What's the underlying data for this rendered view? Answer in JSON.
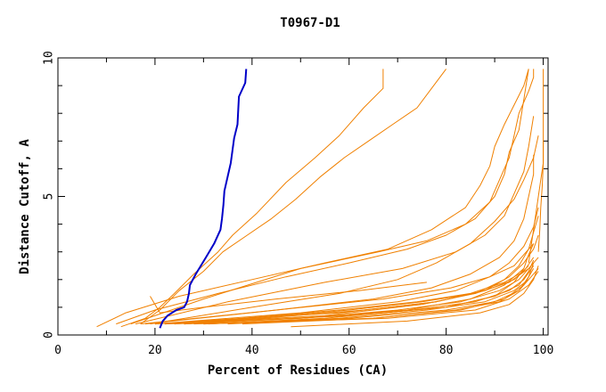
{
  "chart_data": {
    "type": "line",
    "title": "T0967-D1",
    "xlabel": "Percent of Residues (CA)",
    "ylabel": "Distance Cutoff, A",
    "xlim": [
      0,
      101
    ],
    "ylim": [
      0,
      10
    ],
    "xticks": [
      0,
      20,
      40,
      60,
      80,
      100
    ],
    "yticks": [
      0,
      5,
      10
    ],
    "grid": false,
    "colors": {
      "highlight": "#0000c8",
      "others": "#f08000",
      "axes": "#000000"
    },
    "series": [
      {
        "highlight": true,
        "x": [
          21,
          21.6,
          22.6,
          24.4,
          26,
          26.6,
          27,
          27.2,
          28.4,
          30.5,
          32.2,
          33.5,
          33.8,
          34.1,
          34.3,
          35.6,
          36.3,
          37,
          37.3,
          38.6,
          38.8
        ],
        "y": [
          0.25,
          0.5,
          0.7,
          0.9,
          1,
          1.2,
          1.5,
          1.8,
          2.2,
          2.8,
          3.3,
          3.8,
          4.2,
          4.7,
          5.2,
          6.2,
          7.1,
          7.6,
          8.6,
          9.1,
          9.6
        ]
      },
      {
        "x": [
          13,
          18,
          21,
          24,
          28,
          33,
          36,
          41,
          47,
          53,
          58,
          63,
          67,
          67
        ],
        "y": [
          0.3,
          0.6,
          1,
          1.5,
          2.2,
          3,
          3.6,
          4.4,
          5.5,
          6.4,
          7.2,
          8.2,
          8.9,
          9.6
        ]
      },
      {
        "x": [
          17,
          21,
          25,
          30,
          34,
          39,
          44,
          49,
          54,
          59,
          64,
          69,
          74,
          77,
          80
        ],
        "y": [
          0.4,
          0.9,
          1.6,
          2.3,
          3,
          3.6,
          4.2,
          4.9,
          5.7,
          6.4,
          7,
          7.6,
          8.2,
          8.9,
          9.6
        ]
      },
      {
        "x": [
          8,
          14,
          25,
          40,
          55,
          68,
          77,
          84,
          87,
          89,
          90,
          92,
          94,
          96,
          97
        ],
        "y": [
          0.3,
          0.8,
          1.4,
          2,
          2.6,
          3.1,
          3.8,
          4.6,
          5.4,
          6.1,
          6.8,
          7.6,
          8.3,
          9,
          9.6
        ]
      },
      {
        "x": [
          12,
          20,
          33,
          47,
          60,
          72,
          80,
          86,
          90,
          92,
          93,
          95,
          96,
          97
        ],
        "y": [
          0.4,
          0.9,
          1.5,
          2.1,
          2.6,
          3.1,
          3.6,
          4.2,
          5,
          5.8,
          6.6,
          7.4,
          8.5,
          9.6
        ]
      },
      {
        "x": [
          15,
          30,
          50,
          66,
          76,
          84,
          89,
          91,
          93,
          94,
          95,
          97,
          98,
          98
        ],
        "y": [
          0.4,
          1.3,
          2.4,
          3,
          3.4,
          4,
          4.8,
          5.6,
          6.4,
          7.2,
          8,
          8.8,
          9.3,
          9.6
        ]
      },
      {
        "x": [
          16,
          35,
          55,
          71,
          82,
          88,
          92,
          94,
          96,
          97,
          98
        ],
        "y": [
          0.4,
          1.2,
          1.9,
          2.4,
          3,
          3.6,
          4.3,
          5.1,
          5.9,
          6.8,
          7.9
        ]
      },
      {
        "x": [
          19,
          40,
          58,
          70,
          78,
          85,
          90,
          94,
          96,
          98,
          99
        ],
        "y": [
          0.4,
          1,
          1.5,
          2,
          2.6,
          3.3,
          4.1,
          4.9,
          5.6,
          6.4,
          7.2
        ]
      },
      {
        "x": [
          18,
          45,
          65,
          77,
          85,
          91,
          94,
          96,
          97,
          98,
          98
        ],
        "y": [
          0.4,
          0.9,
          1.3,
          1.7,
          2.2,
          2.8,
          3.4,
          4.2,
          5,
          5.8,
          6.5
        ]
      },
      {
        "x": [
          20,
          50,
          70,
          82,
          89,
          93,
          96,
          98,
          99
        ],
        "y": [
          0.4,
          0.8,
          1.2,
          1.6,
          2.1,
          2.6,
          3.2,
          3.9,
          4.6
        ]
      },
      {
        "x": [
          22,
          55,
          75,
          86,
          92,
          95,
          97,
          98,
          99
        ],
        "y": [
          0.4,
          0.7,
          1.1,
          1.5,
          2,
          2.5,
          3.1,
          3.7,
          4.3
        ]
      },
      {
        "x": [
          24,
          60,
          80,
          90,
          94,
          96,
          97,
          98
        ],
        "y": [
          0.4,
          0.7,
          1,
          1.4,
          1.9,
          2.4,
          2.9,
          3.3
        ]
      },
      {
        "x": [
          20,
          58,
          78,
          88,
          93,
          96,
          98,
          99
        ],
        "y": [
          0.4,
          0.8,
          1.2,
          1.6,
          2.1,
          2.6,
          3.1,
          3.6
        ]
      },
      {
        "x": [
          17,
          45,
          67,
          81,
          89,
          94,
          96,
          98
        ],
        "y": [
          0.4,
          0.9,
          1.3,
          1.7,
          2.1,
          2.5,
          2.9,
          3.3
        ]
      },
      {
        "x": [
          26,
          60,
          80,
          90,
          95,
          97,
          98
        ],
        "y": [
          0.4,
          0.7,
          1,
          1.4,
          1.8,
          2.3,
          2.7
        ]
      },
      {
        "x": [
          28,
          65,
          83,
          92,
          96,
          98
        ],
        "y": [
          0.4,
          0.6,
          0.9,
          1.3,
          1.8,
          2.4
        ]
      },
      {
        "x": [
          30,
          68,
          86,
          93,
          97,
          99
        ],
        "y": [
          0.4,
          0.6,
          0.9,
          1.3,
          1.8,
          2.3
        ]
      },
      {
        "x": [
          48,
          72,
          87,
          93,
          96,
          98,
          99
        ],
        "y": [
          0.3,
          0.5,
          0.8,
          1.1,
          1.5,
          2,
          2.5
        ]
      },
      {
        "x": [
          22,
          50,
          72,
          85,
          92,
          96
        ],
        "y": [
          0.4,
          0.6,
          0.9,
          1.3,
          1.8,
          2.4
        ]
      },
      {
        "x": [
          30,
          60,
          80,
          90,
          95,
          97
        ],
        "y": [
          0.4,
          0.6,
          0.9,
          1.2,
          1.6,
          2
        ]
      },
      {
        "x": [
          24,
          40,
          60,
          75,
          86,
          93,
          97,
          99
        ],
        "y": [
          0.4,
          0.6,
          0.9,
          1.2,
          1.5,
          1.9,
          2.4,
          2.8
        ]
      },
      {
        "x": [
          38,
          65,
          82,
          91,
          95,
          97,
          98
        ],
        "y": [
          0.4,
          0.6,
          0.9,
          1.2,
          1.6,
          2.1,
          2.6
        ]
      },
      {
        "x": [
          26,
          50,
          70,
          83,
          91,
          95,
          97
        ],
        "y": [
          0.4,
          0.6,
          0.9,
          1.2,
          1.6,
          2,
          2.4
        ]
      },
      {
        "x": [
          20,
          38,
          58,
          74,
          85,
          92,
          96,
          98
        ],
        "y": [
          0.4,
          0.6,
          0.9,
          1.2,
          1.5,
          1.9,
          2.3,
          2.8
        ]
      },
      {
        "x": [
          26,
          42,
          63,
          78,
          88,
          94,
          97
        ],
        "y": [
          0.4,
          0.6,
          0.9,
          1.2,
          1.6,
          2,
          2.5
        ]
      },
      {
        "x": [
          35,
          58,
          76,
          88,
          94,
          97,
          99
        ],
        "y": [
          0.4,
          0.6,
          0.9,
          1.2,
          1.6,
          2,
          2.4
        ]
      },
      {
        "x": [
          31,
          55,
          73,
          86,
          93,
          96,
          98
        ],
        "y": [
          0.4,
          0.6,
          0.9,
          1.2,
          1.6,
          2,
          2.5
        ]
      },
      {
        "x": [
          19,
          21,
          30,
          45,
          62,
          76
        ],
        "y": [
          1.4,
          0.8,
          1,
          1.3,
          1.6,
          1.9
        ]
      },
      {
        "x": [
          97,
          97.5,
          98,
          98.5,
          99,
          99.5,
          100,
          100,
          100,
          100,
          100,
          100
        ],
        "y": [
          2.6,
          3.2,
          3.8,
          4.4,
          5,
          5.6,
          6.2,
          6.8,
          7.4,
          8,
          8.8,
          9.6
        ]
      },
      {
        "x": [
          99,
          99.3,
          99.5,
          99.8,
          100,
          100
        ],
        "y": [
          3,
          3.8,
          4.6,
          5.4,
          6.2,
          7
        ]
      }
    ]
  }
}
